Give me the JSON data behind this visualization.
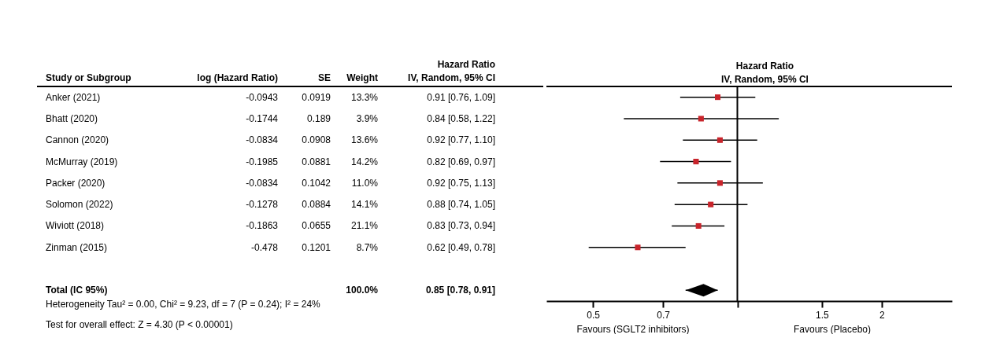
{
  "chart_data": [
    {
      "type": "other",
      "categories": [
        "Study or Subgroup",
        "log (Hazard Ratio)",
        "SE",
        "Weight",
        "Hazard Ratio\nIV, Random, 95% CI"
      ],
      "y_categories": [
        "Anker (2021)",
        "Bhatt (2020)",
        "Cannon (2020)",
        "McMurray (2019)",
        "Packer (2020)",
        "Solomon (2022)",
        "Wiviott (2018)",
        "Zinman (2015)",
        null,
        "Total (IC 95%)"
      ],
      "cell_labels": [
        [
          "-0.0943",
          "0.0919",
          "13.3%",
          "0.91 [0.76, 1.09]"
        ],
        [
          "-0.1744",
          "0.189",
          "3.9%",
          "0.84 [0.58, 1.22]"
        ],
        [
          "-0.0834",
          "0.0908",
          "13.6%",
          "0.92 [0.77, 1.10]"
        ],
        [
          "-0.1985",
          "0.0881",
          "14.2%",
          "0.82 [0.69, 0.97]"
        ],
        [
          "-0.0834",
          "0.1042",
          "11.0%",
          "0.92 [0.75, 1.13]"
        ],
        [
          "-0.1278",
          "0.0884",
          "14.1%",
          "0.88 [0.74, 1.05]"
        ],
        [
          "-0.1863",
          "0.0655",
          "21.1%",
          "0.83 [0.73, 0.94]"
        ],
        [
          "-0.478",
          "0.1201",
          "8.7%",
          "0.62 [0.49, 0.78]"
        ],
        [
          null,
          null,
          null,
          null
        ],
        [
          null,
          null,
          "100.0%",
          "0.85 [0.78, 0.91]"
        ]
      ],
      "annotations": [
        "Heterogeneity Tau² = 0.00, Chi² = 9.23, df = 7 (P = 0.24); I² = 24%",
        "Test for overall effect: Z = 4.30 (P < 0.00001)"
      ]
    },
    {
      "type": "scatter",
      "orientation": "horizontal",
      "title": "Hazard Ratio",
      "subtitle": "IV, Random, 95% CI",
      "series": [
        {
          "type": "scatter",
          "marker": "square",
          "color": "#c8242b",
          "values": [
            0.91,
            0.84,
            0.92,
            0.82,
            0.92,
            0.88,
            0.83,
            0.62,
            null,
            null
          ],
          "errors": [
            [
              0.76,
              1.09
            ],
            [
              0.58,
              1.22
            ],
            [
              0.77,
              1.1
            ],
            [
              0.69,
              0.97
            ],
            [
              0.75,
              1.13
            ],
            [
              0.74,
              1.05
            ],
            [
              0.73,
              0.94
            ],
            [
              0.49,
              0.78
            ],
            null,
            null
          ]
        },
        {
          "type": "scatter",
          "marker": "diamond",
          "color": "#000000",
          "values": [
            null,
            null,
            null,
            null,
            null,
            null,
            null,
            null,
            null,
            0.85
          ],
          "errors": [
            null,
            null,
            null,
            null,
            null,
            null,
            null,
            null,
            null,
            [
              0.78,
              0.91
            ]
          ]
        }
      ],
      "log": "x",
      "xlim": [
        0.4,
        2.8
      ],
      "xticks": [
        0.5,
        0.7,
        {
          "value": 1,
          "label": null
        },
        1.5,
        2
      ],
      "ref_lines": [
        {
          "axis": "x",
          "value": 1,
          "color": "#000000"
        }
      ],
      "annotations": [
        "Favours (SGLT2 inhibitors)",
        "Favours (Placebo)"
      ],
      "tick_labels": "x",
      "grid": false,
      "legend": false
    }
  ]
}
